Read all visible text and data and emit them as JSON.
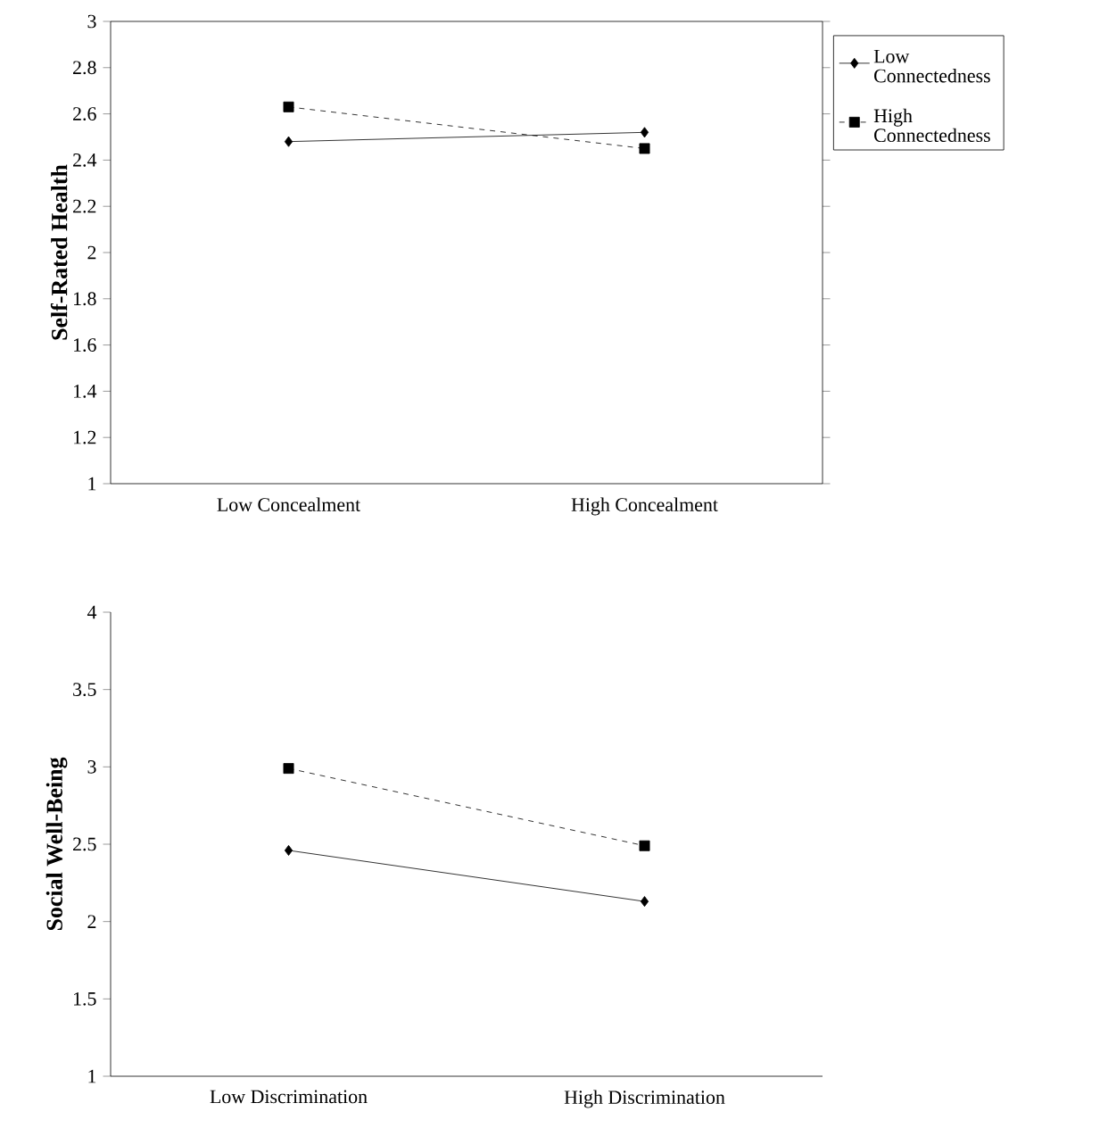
{
  "chart_data": [
    {
      "type": "line",
      "ylabel": "Self-Rated Health",
      "categories": [
        "Low Concealment",
        "High Concealment"
      ],
      "ylim": [
        1,
        3
      ],
      "yticks": [
        1,
        1.2,
        1.4,
        1.6,
        1.8,
        2,
        2.2,
        2.4,
        2.6,
        2.8,
        3
      ],
      "legend": "right",
      "series": [
        {
          "name": "Low Connectedness",
          "color": "#000000",
          "marker": "diamond",
          "line_style": "solid",
          "values": [
            2.48,
            2.52
          ]
        },
        {
          "name": "High Connectedness",
          "color": "#000000",
          "marker": "square",
          "line_style": "dashed",
          "values": [
            2.63,
            2.45
          ]
        }
      ]
    },
    {
      "type": "line",
      "ylabel": "Social Well-Being",
      "categories": [
        "Low Discrimination",
        "High Discrimination"
      ],
      "ylim": [
        1,
        4
      ],
      "yticks": [
        1,
        1.5,
        2,
        2.5,
        3,
        3.5,
        4
      ],
      "series": [
        {
          "color": "#000000",
          "marker": "diamond",
          "line_style": "solid",
          "values": [
            2.46,
            2.13
          ]
        },
        {
          "color": "#000000",
          "marker": "square",
          "line_style": "dashed",
          "values": [
            2.99,
            2.49
          ]
        }
      ]
    }
  ]
}
